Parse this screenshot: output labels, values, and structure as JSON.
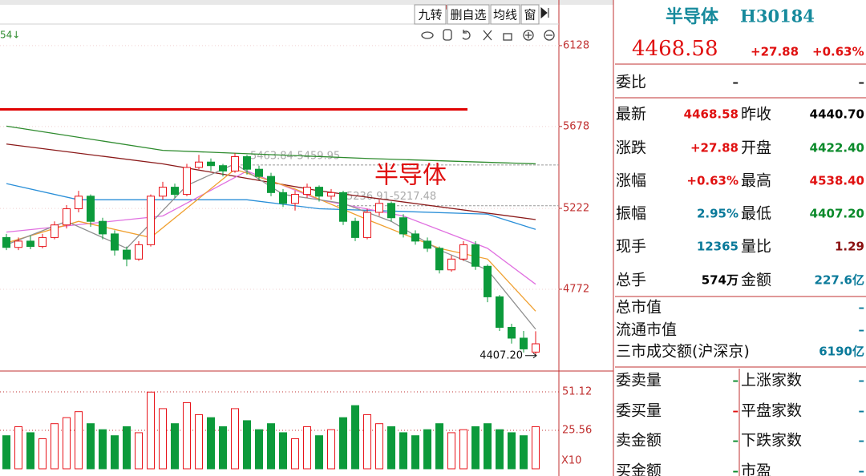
{
  "chart_data": [
    {
      "type": "candlestick",
      "corner_label": "54↓",
      "open": [
        5060,
        5005,
        5040,
        5010,
        5060,
        5130,
        5220,
        5290,
        5150,
        5080,
        4990,
        4940,
        5020,
        5290,
        5340,
        5300,
        5450,
        5480,
        5460,
        5430,
        5510,
        5440,
        5400,
        5310,
        5250,
        5300,
        5340,
        5290,
        5310,
        5150,
        5060,
        5200,
        5250,
        5170,
        5080,
        5040,
        5000,
        4880,
        4940,
        5020,
        4900,
        4730,
        4560,
        4500,
        4422.4
      ],
      "high": [
        5080,
        5060,
        5070,
        5080,
        5150,
        5240,
        5320,
        5300,
        5170,
        5100,
        5010,
        5040,
        5300,
        5370,
        5360,
        5470,
        5520,
        5500,
        5470,
        5530,
        5520,
        5460,
        5420,
        5330,
        5320,
        5360,
        5350,
        5330,
        5320,
        5170,
        5220,
        5270,
        5260,
        5190,
        5100,
        5060,
        5010,
        4960,
        5040,
        5040,
        4910,
        4740,
        4580,
        4540,
        4538.4
      ],
      "low": [
        4990,
        4990,
        4995,
        5000,
        5050,
        5110,
        5200,
        5120,
        5050,
        4960,
        4900,
        4930,
        5010,
        5270,
        5280,
        5290,
        5440,
        5430,
        5400,
        5420,
        5410,
        5380,
        5290,
        5230,
        5210,
        5280,
        5260,
        5270,
        5130,
        5040,
        5050,
        5180,
        5150,
        5060,
        5020,
        4980,
        4860,
        4870,
        4930,
        4880,
        4700,
        4540,
        4470,
        4420,
        4407.2
      ],
      "close": [
        5005,
        5040,
        5010,
        5060,
        5130,
        5220,
        5290,
        5150,
        5080,
        4990,
        4940,
        5020,
        5290,
        5340,
        5300,
        5450,
        5480,
        5460,
        5430,
        5510,
        5440,
        5400,
        5310,
        5250,
        5300,
        5340,
        5290,
        5310,
        5150,
        5060,
        5200,
        5250,
        5170,
        5080,
        5040,
        5000,
        4880,
        4940,
        5020,
        4900,
        4730,
        4560,
        4500,
        4440,
        4468.58
      ],
      "up_color": "#e8131a",
      "down_color": "#0c9a3b",
      "ma": [
        {
          "color": "#2e8b2e",
          "x": [
            0,
            13,
            30,
            44
          ],
          "values": [
            5680,
            5545,
            5500,
            5470
          ]
        },
        {
          "color": "#8b1a1a",
          "x": [
            0,
            13,
            26,
            44
          ],
          "values": [
            5580,
            5470,
            5320,
            5160
          ]
        },
        {
          "color": "#2a8fd8",
          "x": [
            0,
            6,
            20,
            26,
            40,
            44
          ],
          "values": [
            5360,
            5270,
            5270,
            5220,
            5190,
            5105
          ]
        },
        {
          "color": "#e070e0",
          "x": [
            0,
            13,
            20,
            26,
            33,
            40,
            44
          ],
          "values": [
            5090,
            5180,
            5430,
            5270,
            5180,
            5000,
            4800
          ]
        },
        {
          "color": "#f0a030",
          "x": [
            0,
            6,
            12,
            19,
            24,
            30,
            36,
            40,
            44
          ],
          "values": [
            5030,
            5150,
            5060,
            5440,
            5330,
            5160,
            5000,
            4940,
            4650
          ]
        },
        {
          "color": "#909090",
          "x": [
            0,
            5,
            10,
            15,
            19,
            23,
            28,
            32,
            36,
            40,
            44
          ],
          "values": [
            5020,
            5150,
            5000,
            5350,
            5470,
            5300,
            5250,
            5150,
            4990,
            4880,
            4550
          ]
        }
      ],
      "hline": {
        "value": 5773,
        "color": "#e00000"
      },
      "ranges": [
        {
          "label": "5463.84-5459.95",
          "high": 5463.84,
          "low": 5459.95
        },
        {
          "label": "5236.91-5217.48",
          "high": 5236.91,
          "low": 5217.48
        }
      ],
      "annotation": "半导体",
      "low_label": "4407.20",
      "ylim": [
        4317,
        6248
      ],
      "yticks": [
        6128,
        5678,
        5222,
        4772
      ]
    },
    {
      "type": "bar",
      "unit_label": "X10",
      "values": [
        22,
        28,
        24,
        20,
        30,
        34,
        38,
        30,
        26,
        22,
        28,
        24,
        51,
        40,
        30,
        44,
        36,
        34,
        28,
        40,
        32,
        26,
        30,
        24,
        20,
        28,
        22,
        26,
        34,
        42,
        36,
        30,
        28,
        24,
        22,
        26,
        30,
        24,
        26,
        28,
        30,
        26,
        24,
        22,
        28
      ],
      "ylim": [
        0,
        65
      ],
      "yticks": [
        51.12,
        25.56
      ],
      "grid": true
    }
  ],
  "toolbar": {
    "buttons": [
      "九转",
      "删自选",
      "均线",
      "窗"
    ]
  },
  "quote_panel": {
    "name": "半导体",
    "code": "H30184",
    "price": "4468.58",
    "change": "+27.88",
    "change_pct": "+0.63%",
    "top_row": [
      {
        "t": "委比"
      },
      {
        "t": "–"
      },
      {
        "t": "–"
      }
    ],
    "pair_rows": [
      [
        {
          "t": "最新"
        },
        {
          "t": "4468.58",
          "c": "#e01010"
        },
        {
          "t": "昨收"
        },
        {
          "t": "4440.70",
          "c": "#000000"
        }
      ],
      [
        {
          "t": "涨跌"
        },
        {
          "t": "+27.88",
          "c": "#e01010"
        },
        {
          "t": "开盘"
        },
        {
          "t": "4422.40",
          "c": "#0a8a2a"
        }
      ],
      [
        {
          "t": "涨幅"
        },
        {
          "t": "+0.63%",
          "c": "#e01010"
        },
        {
          "t": "最高"
        },
        {
          "t": "4538.40",
          "c": "#e01010"
        }
      ],
      [
        {
          "t": "振幅"
        },
        {
          "t": "2.95%",
          "c": "#0a7a9a"
        },
        {
          "t": "最低"
        },
        {
          "t": "4407.20",
          "c": "#0a8a2a"
        }
      ],
      [
        {
          "t": "现手"
        },
        {
          "t": "12365",
          "c": "#0a7a9a"
        },
        {
          "t": "量比"
        },
        {
          "t": "1.29",
          "c": "#8a1010"
        }
      ],
      [
        {
          "t": "总手"
        },
        {
          "t": "574万",
          "c": "#000000"
        },
        {
          "t": "金额"
        },
        {
          "t": "227.6亿",
          "c": "#0a7a9a"
        }
      ]
    ],
    "single_rows": [
      [
        {
          "t": "总市值"
        },
        {
          "t": "–",
          "c": "#0a7a9a"
        }
      ],
      [
        {
          "t": "流通市值"
        },
        {
          "t": "–",
          "c": "#0a7a9a"
        }
      ],
      [
        {
          "t": "三市成交额(沪深京)"
        },
        {
          "t": "6190亿",
          "c": "#0a7a9a"
        }
      ]
    ],
    "bottom_rows": [
      [
        {
          "t": "委卖量"
        },
        {
          "t": "–",
          "c": "#0a8a2a"
        },
        {
          "t": "上涨家数"
        },
        {
          "t": "–",
          "c": "#0a7a9a"
        }
      ],
      [
        {
          "t": "委买量"
        },
        {
          "t": "–",
          "c": "#e01010"
        },
        {
          "t": "平盘家数"
        },
        {
          "t": "–",
          "c": "#0a7a9a"
        }
      ],
      [
        {
          "t": "卖金额"
        },
        {
          "t": "–",
          "c": "#0a8a2a"
        },
        {
          "t": "下跌家数"
        },
        {
          "t": "–",
          "c": "#0a7a9a"
        }
      ],
      [
        {
          "t": "买金额"
        },
        {
          "t": "–",
          "c": "#0a8a2a"
        },
        {
          "t": "市盈"
        },
        {
          "t": "–",
          "c": "#0a7a9a"
        }
      ]
    ]
  }
}
